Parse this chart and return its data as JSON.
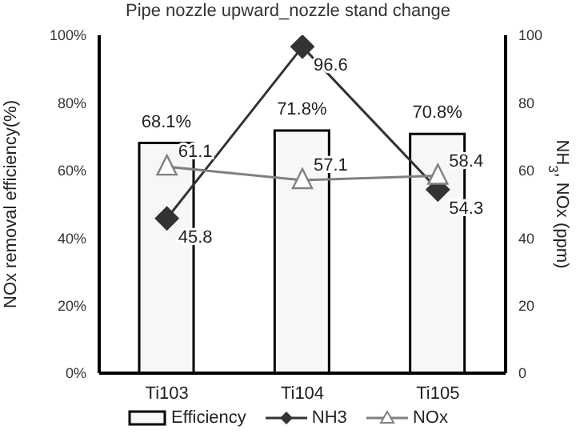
{
  "chart_data": {
    "type": "bar",
    "title": "Pipe nozzle upward_nozzle stand change",
    "ylabel": "NOx removal efficiency(%)",
    "y2label": "NH$_{3}$, NOx (ppm)",
    "categories": [
      "Ti103",
      "Ti104",
      "Ti105"
    ],
    "series": [
      {
        "name": "Efficiency",
        "color": "#f7f7f7",
        "values": [
          68.1,
          71.8,
          70.8
        ],
        "value_labels": [
          "68.1%",
          "71.8%",
          "70.8%"
        ]
      },
      {
        "name": "NH3",
        "type": "line",
        "axis": "y2",
        "color": "#333333",
        "values": [
          45.8,
          96.6,
          54.3
        ],
        "value_labels": [
          "45.8",
          "96.6",
          "54.3"
        ],
        "marker": "diamond"
      },
      {
        "name": "NOx",
        "type": "line",
        "axis": "y2",
        "color": "#808080",
        "values": [
          61.1,
          57.1,
          58.4
        ],
        "value_labels": [
          "61.1",
          "57.1",
          "58.4"
        ],
        "marker": "triangle"
      }
    ],
    "ylim": [
      0,
      100
    ],
    "yticks": [
      {
        "value": 0,
        "label": "0%"
      },
      {
        "value": 20,
        "label": "20%"
      },
      {
        "value": 40,
        "label": "40%"
      },
      {
        "value": 60,
        "label": "60%"
      },
      {
        "value": 80,
        "label": "80%"
      },
      {
        "value": 100,
        "label": "100%"
      }
    ],
    "y2lim": [
      0,
      100
    ],
    "y2ticks": [
      0,
      20,
      40,
      60,
      80,
      100
    ],
    "grid": false,
    "legend": "bottom"
  }
}
